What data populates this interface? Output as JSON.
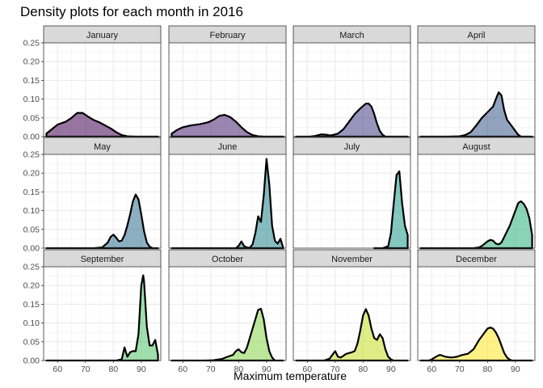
{
  "chart_data": {
    "type": "area",
    "title": "Density plots for each month in 2016",
    "xlabel": "Maximum temperature",
    "ylabel": "",
    "xlim": [
      55,
      97
    ],
    "ylim": [
      0,
      0.25
    ],
    "x_ticks": [
      60,
      70,
      80,
      90
    ],
    "y_ticks": [
      0,
      0.05,
      0.1,
      0.15,
      0.2,
      0.25
    ],
    "x_tick_labels": [
      "60",
      "70",
      "80",
      "90"
    ],
    "y_tick_labels": [
      "0.00",
      "0.05",
      "0.10",
      "0.15",
      "0.20",
      "0.25"
    ],
    "grid": true,
    "legend": "none",
    "panels": [
      {
        "name": "January",
        "color": "#440154",
        "range": [
          56,
          96
        ],
        "points": [
          [
            56,
            0.008
          ],
          [
            58,
            0.02
          ],
          [
            60,
            0.032
          ],
          [
            63,
            0.04
          ],
          [
            65,
            0.05
          ],
          [
            67,
            0.063
          ],
          [
            69,
            0.063
          ],
          [
            71,
            0.053
          ],
          [
            73,
            0.044
          ],
          [
            75,
            0.038
          ],
          [
            77,
            0.03
          ],
          [
            79,
            0.022
          ],
          [
            81,
            0.012
          ],
          [
            83,
            0.004
          ],
          [
            85,
            0.001
          ],
          [
            88,
            0
          ],
          [
            96,
            0
          ]
        ]
      },
      {
        "name": "February",
        "color": "#482173",
        "range": [
          56,
          96
        ],
        "points": [
          [
            56,
            0.008
          ],
          [
            58,
            0.018
          ],
          [
            60,
            0.025
          ],
          [
            63,
            0.03
          ],
          [
            66,
            0.033
          ],
          [
            69,
            0.038
          ],
          [
            71,
            0.045
          ],
          [
            73,
            0.055
          ],
          [
            75,
            0.058
          ],
          [
            77,
            0.052
          ],
          [
            79,
            0.04
          ],
          [
            81,
            0.025
          ],
          [
            83,
            0.012
          ],
          [
            85,
            0.004
          ],
          [
            87,
            0.001
          ],
          [
            89,
            0
          ],
          [
            96,
            0
          ]
        ]
      },
      {
        "name": "March",
        "color": "#433e85",
        "range": [
          56,
          96
        ],
        "points": [
          [
            56,
            0
          ],
          [
            61,
            0
          ],
          [
            63,
            0.002
          ],
          [
            65,
            0.006
          ],
          [
            67,
            0.005
          ],
          [
            68,
            0.003
          ],
          [
            69,
            0.004
          ],
          [
            71,
            0.008
          ],
          [
            73,
            0.02
          ],
          [
            75,
            0.04
          ],
          [
            77,
            0.06
          ],
          [
            79,
            0.075
          ],
          [
            81,
            0.088
          ],
          [
            82,
            0.088
          ],
          [
            83,
            0.08
          ],
          [
            84,
            0.06
          ],
          [
            85,
            0.035
          ],
          [
            86,
            0.015
          ],
          [
            87,
            0.005
          ],
          [
            88,
            0
          ],
          [
            96,
            0
          ]
        ]
      },
      {
        "name": "April",
        "color": "#38588c",
        "range": [
          56,
          96
        ],
        "points": [
          [
            56,
            0
          ],
          [
            66,
            0
          ],
          [
            70,
            0.001
          ],
          [
            72,
            0.004
          ],
          [
            74,
            0.012
          ],
          [
            76,
            0.03
          ],
          [
            78,
            0.05
          ],
          [
            80,
            0.065
          ],
          [
            82,
            0.08
          ],
          [
            83,
            0.1
          ],
          [
            84,
            0.118
          ],
          [
            85,
            0.11
          ],
          [
            86,
            0.07
          ],
          [
            87,
            0.045
          ],
          [
            88,
            0.035
          ],
          [
            89,
            0.025
          ],
          [
            90,
            0.015
          ],
          [
            91,
            0.005
          ],
          [
            92,
            0
          ],
          [
            96,
            0
          ]
        ]
      },
      {
        "name": "May",
        "color": "#2d708e",
        "range": [
          56,
          96
        ],
        "points": [
          [
            56,
            0
          ],
          [
            73,
            0
          ],
          [
            76,
            0.002
          ],
          [
            78,
            0.015
          ],
          [
            79,
            0.03
          ],
          [
            80,
            0.036
          ],
          [
            81,
            0.028
          ],
          [
            82,
            0.018
          ],
          [
            83,
            0.02
          ],
          [
            84,
            0.035
          ],
          [
            85,
            0.06
          ],
          [
            86,
            0.09
          ],
          [
            87,
            0.125
          ],
          [
            88,
            0.143
          ],
          [
            89,
            0.13
          ],
          [
            90,
            0.09
          ],
          [
            91,
            0.045
          ],
          [
            92,
            0.015
          ],
          [
            93,
            0.004
          ],
          [
            94,
            0
          ],
          [
            96,
            0
          ]
        ]
      },
      {
        "name": "June",
        "color": "#25858e",
        "range": [
          56,
          96
        ],
        "points": [
          [
            56,
            0
          ],
          [
            79,
            0
          ],
          [
            80,
            0.006
          ],
          [
            81,
            0.018
          ],
          [
            82,
            0.005
          ],
          [
            83,
            0.002
          ],
          [
            84,
            0.001
          ],
          [
            85,
            0.01
          ],
          [
            86,
            0.04
          ],
          [
            87,
            0.085
          ],
          [
            88,
            0.07
          ],
          [
            89,
            0.14
          ],
          [
            90,
            0.238
          ],
          [
            91,
            0.17
          ],
          [
            92,
            0.06
          ],
          [
            93,
            0.02
          ],
          [
            94,
            0.012
          ],
          [
            95,
            0.025
          ],
          [
            96,
            0
          ]
        ]
      },
      {
        "name": "July",
        "color": "#1e9b8a",
        "range": [
          84,
          96
        ],
        "points": [
          [
            84,
            0
          ],
          [
            87,
            0
          ],
          [
            89,
            0.005
          ],
          [
            90,
            0.04
          ],
          [
            91,
            0.12
          ],
          [
            92,
            0.195
          ],
          [
            93,
            0.205
          ],
          [
            94,
            0.12
          ],
          [
            95,
            0.06
          ],
          [
            96,
            0.035
          ]
        ]
      },
      {
        "name": "August",
        "color": "#2ab07f",
        "range": [
          56,
          96
        ],
        "points": [
          [
            56,
            0
          ],
          [
            75,
            0
          ],
          [
            77,
            0.002
          ],
          [
            78,
            0.006
          ],
          [
            79,
            0.012
          ],
          [
            80,
            0.018
          ],
          [
            81,
            0.022
          ],
          [
            82,
            0.02
          ],
          [
            83,
            0.012
          ],
          [
            84,
            0.01
          ],
          [
            85,
            0.015
          ],
          [
            86,
            0.03
          ],
          [
            88,
            0.06
          ],
          [
            90,
            0.1
          ],
          [
            91,
            0.12
          ],
          [
            92,
            0.125
          ],
          [
            93,
            0.118
          ],
          [
            94,
            0.105
          ],
          [
            95,
            0.08
          ],
          [
            96,
            0.035
          ]
        ]
      },
      {
        "name": "September",
        "color": "#52c569",
        "range": [
          56,
          96
        ],
        "points": [
          [
            56,
            0
          ],
          [
            81,
            0
          ],
          [
            83,
            0.003
          ],
          [
            84,
            0.035
          ],
          [
            85,
            0.01
          ],
          [
            86,
            0.022
          ],
          [
            87,
            0.025
          ],
          [
            88,
            0.025
          ],
          [
            89,
            0.07
          ],
          [
            90,
            0.2
          ],
          [
            90.7,
            0.227
          ],
          [
            91,
            0.21
          ],
          [
            92,
            0.09
          ],
          [
            93,
            0.04
          ],
          [
            94,
            0.04
          ],
          [
            95,
            0.055
          ],
          [
            96,
            0.015
          ]
        ]
      },
      {
        "name": "October",
        "color": "#86d549",
        "range": [
          56,
          96
        ],
        "points": [
          [
            56,
            0
          ],
          [
            68,
            0
          ],
          [
            71,
            0.001
          ],
          [
            74,
            0.004
          ],
          [
            76,
            0.01
          ],
          [
            78,
            0.015
          ],
          [
            79,
            0.025
          ],
          [
            80,
            0.03
          ],
          [
            81,
            0.022
          ],
          [
            82,
            0.02
          ],
          [
            83,
            0.035
          ],
          [
            84,
            0.06
          ],
          [
            86,
            0.11
          ],
          [
            87,
            0.135
          ],
          [
            88,
            0.138
          ],
          [
            89,
            0.11
          ],
          [
            90,
            0.06
          ],
          [
            91,
            0.025
          ],
          [
            92,
            0.008
          ],
          [
            93,
            0
          ],
          [
            96,
            0
          ]
        ]
      },
      {
        "name": "November",
        "color": "#c2df23",
        "range": [
          56,
          96
        ],
        "points": [
          [
            56,
            0
          ],
          [
            66,
            0
          ],
          [
            68,
            0.005
          ],
          [
            69,
            0.015
          ],
          [
            70,
            0.025
          ],
          [
            71,
            0.01
          ],
          [
            72,
            0.008
          ],
          [
            74,
            0.018
          ],
          [
            76,
            0.022
          ],
          [
            77,
            0.025
          ],
          [
            78,
            0.045
          ],
          [
            79,
            0.08
          ],
          [
            80,
            0.12
          ],
          [
            81,
            0.137
          ],
          [
            82,
            0.12
          ],
          [
            83,
            0.085
          ],
          [
            84,
            0.06
          ],
          [
            85,
            0.055
          ],
          [
            86,
            0.07
          ],
          [
            87,
            0.06
          ],
          [
            88,
            0.03
          ],
          [
            89,
            0.01
          ],
          [
            90,
            0.003
          ],
          [
            91,
            0
          ],
          [
            96,
            0
          ]
        ]
      },
      {
        "name": "December",
        "color": "#fde725",
        "range": [
          56,
          96
        ],
        "points": [
          [
            56,
            0
          ],
          [
            59,
            0
          ],
          [
            60,
            0.003
          ],
          [
            62,
            0.012
          ],
          [
            63,
            0.015
          ],
          [
            65,
            0.01
          ],
          [
            67,
            0.008
          ],
          [
            69,
            0.01
          ],
          [
            71,
            0.015
          ],
          [
            73,
            0.018
          ],
          [
            75,
            0.03
          ],
          [
            77,
            0.055
          ],
          [
            79,
            0.075
          ],
          [
            80,
            0.085
          ],
          [
            81,
            0.088
          ],
          [
            82,
            0.085
          ],
          [
            83,
            0.075
          ],
          [
            84,
            0.06
          ],
          [
            85,
            0.04
          ],
          [
            86,
            0.02
          ],
          [
            87,
            0.008
          ],
          [
            88,
            0.002
          ],
          [
            89,
            0
          ],
          [
            96,
            0
          ]
        ]
      }
    ]
  }
}
